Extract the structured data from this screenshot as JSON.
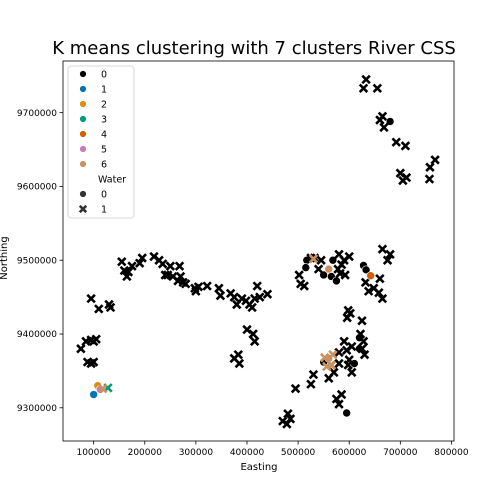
{
  "chart_data": {
    "type": "scatter",
    "title": "K means clustering with 7 clusters River CSS",
    "xlabel": "Easting",
    "ylabel": "Northing",
    "xlim": [
      40000,
      805000
    ],
    "ylim": [
      9255000,
      9770000
    ],
    "xticks": [
      100000,
      200000,
      300000,
      400000,
      500000,
      600000,
      700000,
      800000
    ],
    "xtick_labels": [
      "100000",
      "200000",
      "300000",
      "400000",
      "500000",
      "600000",
      "700000",
      "800000"
    ],
    "yticks": [
      9300000,
      9400000,
      9500000,
      9600000,
      9700000
    ],
    "ytick_labels": [
      "9300000",
      "9400000",
      "9500000",
      "9600000",
      "9700000"
    ],
    "grid": false,
    "legend": {
      "placement": "top-left",
      "cluster_entries": [
        {
          "label": "0",
          "color": "#000000"
        },
        {
          "label": "1",
          "color": "#0173b2"
        },
        {
          "label": "2",
          "color": "#de8f05"
        },
        {
          "label": "3",
          "color": "#029e73"
        },
        {
          "label": "4",
          "color": "#d55e00"
        },
        {
          "label": "5",
          "color": "#cc78bc"
        },
        {
          "label": "6",
          "color": "#ca9161"
        }
      ],
      "style_title": "Water",
      "style_entries": [
        {
          "label": "0",
          "marker": "circle"
        },
        {
          "label": "1",
          "marker": "x"
        }
      ]
    },
    "series": [
      {
        "name": "0",
        "color": "#000000",
        "points": [
          [
            517000,
            9500000,
            0
          ],
          [
            515000,
            9490000,
            0
          ],
          [
            550000,
            9480000,
            0
          ],
          [
            565000,
            9478000,
            0
          ],
          [
            575000,
            9472000,
            0
          ],
          [
            568000,
            9500000,
            0
          ],
          [
            628000,
            9493000,
            0
          ],
          [
            633000,
            9487000,
            0
          ],
          [
            680000,
            9688000,
            0
          ],
          [
            550000,
            9362000,
            0
          ],
          [
            610000,
            9360000,
            0
          ],
          [
            620000,
            9395000,
            0
          ],
          [
            595000,
            9293000,
            0
          ],
          [
            620000,
            9380000,
            0
          ],
          [
            655000,
            9733000,
            1
          ],
          [
            633000,
            9745000,
            1
          ],
          [
            628000,
            9733000,
            1
          ],
          [
            660000,
            9690000,
            1
          ],
          [
            668000,
            9680000,
            1
          ],
          [
            665000,
            9695000,
            1
          ],
          [
            692000,
            9660000,
            1
          ],
          [
            710000,
            9655000,
            1
          ],
          [
            700000,
            9618000,
            1
          ],
          [
            705000,
            9608000,
            1
          ],
          [
            712000,
            9612000,
            1
          ],
          [
            758000,
            9626000,
            1
          ],
          [
            768000,
            9636000,
            1
          ],
          [
            757000,
            9610000,
            1
          ],
          [
            665000,
            9515000,
            1
          ],
          [
            680000,
            9508000,
            1
          ],
          [
            675000,
            9500000,
            1
          ],
          [
            648000,
            9462000,
            1
          ],
          [
            658000,
            9456000,
            1
          ],
          [
            665000,
            9448000,
            1
          ],
          [
            638000,
            9458000,
            1
          ],
          [
            660000,
            9475000,
            1
          ],
          [
            632000,
            9470000,
            1
          ],
          [
            600000,
            9505000,
            1
          ],
          [
            580000,
            9508000,
            1
          ],
          [
            585000,
            9494000,
            1
          ],
          [
            590000,
            9500000,
            1
          ],
          [
            578000,
            9488000,
            1
          ],
          [
            582000,
            9482000,
            1
          ],
          [
            592000,
            9480000,
            1
          ],
          [
            545000,
            9500000,
            1
          ],
          [
            532000,
            9503000,
            1
          ],
          [
            540000,
            9488000,
            1
          ],
          [
            502000,
            9480000,
            1
          ],
          [
            505000,
            9468000,
            1
          ],
          [
            512000,
            9465000,
            1
          ],
          [
            525000,
            9503000,
            1
          ],
          [
            598000,
            9432000,
            1
          ],
          [
            602000,
            9428000,
            1
          ],
          [
            596000,
            9422000,
            1
          ],
          [
            625000,
            9418000,
            1
          ],
          [
            622000,
            9400000,
            1
          ],
          [
            628000,
            9390000,
            1
          ],
          [
            625000,
            9380000,
            1
          ],
          [
            630000,
            9372000,
            1
          ],
          [
            605000,
            9383000,
            1
          ],
          [
            590000,
            9390000,
            1
          ],
          [
            595000,
            9378000,
            1
          ],
          [
            580000,
            9375000,
            1
          ],
          [
            600000,
            9365000,
            1
          ],
          [
            598000,
            9358000,
            1
          ],
          [
            605000,
            9348000,
            1
          ],
          [
            580000,
            9360000,
            1
          ],
          [
            565000,
            9358000,
            1
          ],
          [
            570000,
            9348000,
            1
          ],
          [
            575000,
            9312000,
            1
          ],
          [
            580000,
            9305000,
            1
          ],
          [
            585000,
            9318000,
            1
          ],
          [
            560000,
            9340000,
            1
          ],
          [
            530000,
            9345000,
            1
          ],
          [
            525000,
            9332000,
            1
          ],
          [
            495000,
            9326000,
            1
          ],
          [
            470000,
            9282000,
            1
          ],
          [
            480000,
            9292000,
            1
          ],
          [
            485000,
            9285000,
            1
          ],
          [
            478000,
            9278000,
            1
          ],
          [
            95000,
            9448000,
            1
          ],
          [
            110000,
            9434000,
            1
          ],
          [
            130000,
            9440000,
            1
          ],
          [
            133000,
            9436000,
            1
          ],
          [
            75000,
            9380000,
            1
          ],
          [
            85000,
            9390000,
            1
          ],
          [
            95000,
            9392000,
            1
          ],
          [
            100000,
            9390000,
            1
          ],
          [
            105000,
            9393000,
            1
          ],
          [
            88000,
            9362000,
            1
          ],
          [
            95000,
            9360000,
            1
          ],
          [
            100000,
            9362000,
            1
          ],
          [
            155000,
            9498000,
            1
          ],
          [
            160000,
            9486000,
            1
          ],
          [
            165000,
            9478000,
            1
          ],
          [
            168000,
            9484000,
            1
          ],
          [
            175000,
            9492000,
            1
          ],
          [
            190000,
            9496000,
            1
          ],
          [
            195000,
            9503000,
            1
          ],
          [
            218000,
            9505000,
            1
          ],
          [
            228000,
            9500000,
            1
          ],
          [
            235000,
            9495000,
            1
          ],
          [
            240000,
            9480000,
            1
          ],
          [
            245000,
            9480000,
            1
          ],
          [
            250000,
            9492000,
            1
          ],
          [
            255000,
            9478000,
            1
          ],
          [
            265000,
            9472000,
            1
          ],
          [
            268000,
            9492000,
            1
          ],
          [
            275000,
            9470000,
            1
          ],
          [
            280000,
            9468000,
            1
          ],
          [
            270000,
            9478000,
            1
          ],
          [
            298000,
            9462000,
            1
          ],
          [
            300000,
            9458000,
            1
          ],
          [
            305000,
            9464000,
            1
          ],
          [
            322000,
            9465000,
            1
          ],
          [
            345000,
            9462000,
            1
          ],
          [
            348000,
            9452000,
            1
          ],
          [
            368000,
            9455000,
            1
          ],
          [
            375000,
            9450000,
            1
          ],
          [
            380000,
            9440000,
            1
          ],
          [
            390000,
            9448000,
            1
          ],
          [
            398000,
            9445000,
            1
          ],
          [
            405000,
            9440000,
            1
          ],
          [
            410000,
            9436000,
            1
          ],
          [
            415000,
            9448000,
            1
          ],
          [
            425000,
            9450000,
            1
          ],
          [
            420000,
            9465000,
            1
          ],
          [
            440000,
            9454000,
            1
          ],
          [
            400000,
            9406000,
            1
          ],
          [
            412000,
            9400000,
            1
          ],
          [
            415000,
            9390000,
            1
          ],
          [
            375000,
            9367000,
            1
          ],
          [
            383000,
            9372000,
            1
          ],
          [
            385000,
            9360000,
            1
          ]
        ]
      },
      {
        "name": "1",
        "color": "#0173b2",
        "points": [
          [
            100000,
            9318000,
            0
          ]
        ]
      },
      {
        "name": "2",
        "color": "#de8f05",
        "points": [
          [
            108000,
            9330000,
            0
          ]
        ]
      },
      {
        "name": "3",
        "color": "#029e73",
        "points": [
          [
            128000,
            9327000,
            1
          ]
        ]
      },
      {
        "name": "4",
        "color": "#d55e00",
        "points": [
          [
            642000,
            9479000,
            0
          ]
        ]
      },
      {
        "name": "5",
        "color": "#cc78bc",
        "points": [
          [
            113000,
            9325000,
            0
          ]
        ]
      },
      {
        "name": "6",
        "color": "#ca9161",
        "points": [
          [
            560000,
            9488000,
            0
          ],
          [
            560000,
            9367000,
            0
          ],
          [
            552000,
            9368000,
            1
          ],
          [
            565000,
            9358000,
            1
          ],
          [
            556000,
            9356000,
            1
          ],
          [
            568000,
            9372000,
            1
          ],
          [
            530000,
            9502000,
            1
          ],
          [
            118000,
            9326000,
            1
          ]
        ]
      }
    ]
  }
}
